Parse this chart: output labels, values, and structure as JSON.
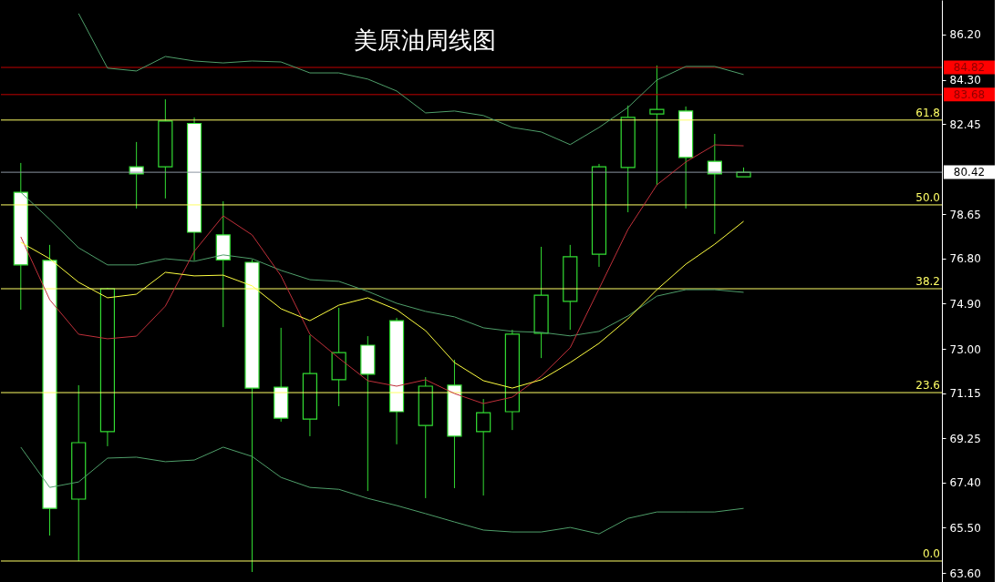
{
  "chart_data": {
    "type": "candlestick",
    "title": "美原油周线图",
    "categories": [
      null,
      null,
      null,
      null,
      null,
      null,
      null,
      null,
      null,
      null,
      null,
      null,
      null,
      null,
      null,
      null,
      null,
      null,
      null,
      null,
      null,
      null,
      null,
      null,
      null,
      null
    ],
    "ohlc": [
      [
        79.58,
        80.81,
        74.65,
        76.53
      ],
      [
        76.72,
        77.37,
        65.17,
        66.31
      ],
      [
        66.7,
        71.48,
        64.1,
        69.07
      ],
      [
        69.53,
        75.57,
        68.92,
        75.53
      ],
      [
        80.65,
        81.69,
        78.9,
        80.35
      ],
      [
        80.65,
        83.48,
        79.32,
        82.57
      ],
      [
        82.47,
        82.72,
        76.72,
        77.9
      ],
      [
        77.79,
        79.2,
        73.92,
        76.74
      ],
      [
        76.64,
        76.75,
        63.64,
        71.36
      ],
      [
        71.4,
        73.89,
        69.95,
        70.1
      ],
      [
        70.06,
        73.58,
        69.34,
        71.97
      ],
      [
        71.71,
        74.73,
        70.6,
        72.85
      ],
      [
        73.16,
        73.54,
        67.04,
        71.94
      ],
      [
        74.19,
        74.31,
        69.0,
        70.37
      ],
      [
        69.79,
        71.82,
        66.74,
        71.44
      ],
      [
        71.48,
        72.55,
        67.16,
        69.34
      ],
      [
        69.53,
        70.9,
        66.85,
        70.33
      ],
      [
        70.37,
        73.81,
        69.6,
        73.62
      ],
      [
        73.66,
        77.29,
        72.62,
        75.26
      ],
      [
        75.0,
        77.37,
        73.81,
        76.87
      ],
      [
        76.98,
        80.77,
        76.45,
        80.65
      ],
      [
        80.62,
        83.22,
        78.74,
        82.72
      ],
      [
        82.87,
        84.9,
        79.89,
        83.06
      ],
      [
        82.99,
        83.18,
        78.9,
        81.04
      ],
      [
        80.88,
        82.03,
        77.83,
        80.35
      ],
      [
        80.23,
        80.62,
        80.23,
        80.42
      ]
    ],
    "series": [
      {
        "type": "line",
        "color": "#4f9f6a",
        "values": [
          null,
          null,
          87.08,
          84.79,
          84.67,
          85.28,
          85.09,
          85.01,
          85.09,
          85.05,
          84.59,
          84.59,
          84.33,
          83.83,
          82.91,
          82.99,
          82.8,
          82.3,
          82.11,
          81.58,
          82.3,
          83.14,
          84.29,
          84.86,
          84.86,
          84.52
        ]
      },
      {
        "type": "line",
        "color": "#4f9f6a",
        "values": [
          79.58,
          78.44,
          77.25,
          76.53,
          76.53,
          76.79,
          76.68,
          76.95,
          76.79,
          76.3,
          75.91,
          75.84,
          75.42,
          74.92,
          74.58,
          74.35,
          73.89,
          73.74,
          73.7,
          73.55,
          73.74,
          74.39,
          75.22,
          75.49,
          75.49,
          75.38
        ]
      },
      {
        "type": "line",
        "color": "#4f9f6a",
        "values": [
          68.88,
          67.19,
          67.42,
          68.42,
          68.46,
          68.27,
          68.34,
          68.88,
          68.49,
          67.61,
          67.19,
          67.11,
          66.73,
          66.43,
          66.09,
          65.74,
          65.4,
          65.32,
          65.32,
          65.51,
          65.24,
          65.89,
          66.16,
          66.16,
          66.16,
          66.31
        ]
      },
      {
        "type": "line",
        "color": "#c0303a",
        "values": [
          77.71,
          75.07,
          73.62,
          73.43,
          73.54,
          74.8,
          77.1,
          78.59,
          77.79,
          76.07,
          73.62,
          72.62,
          71.67,
          71.44,
          71.71,
          71.13,
          70.71,
          70.98,
          71.86,
          73.05,
          75.53,
          78.02,
          79.89,
          80.85,
          81.57,
          81.53
        ]
      },
      {
        "type": "line",
        "color": "#ffff40",
        "values": [
          77.48,
          76.79,
          75.8,
          75.15,
          75.3,
          76.22,
          76.07,
          76.1,
          75.65,
          74.69,
          74.19,
          74.84,
          75.15,
          74.65,
          73.77,
          72.43,
          71.67,
          71.36,
          71.71,
          72.43,
          73.24,
          74.27,
          75.49,
          76.56,
          77.4,
          78.36
        ]
      }
    ],
    "ylim": [
      63.22,
      87.65
    ],
    "yticks": [
      {
        "value": 63.6,
        "label": "63.60"
      },
      {
        "value": 65.5,
        "label": "65.50"
      },
      {
        "value": 67.4,
        "label": "67.40"
      },
      {
        "value": 69.25,
        "label": "69.25"
      },
      {
        "value": 71.15,
        "label": "71.15"
      },
      {
        "value": 73.0,
        "label": "73.00"
      },
      {
        "value": 74.9,
        "label": "74.90"
      },
      {
        "value": 76.8,
        "label": "76.80"
      },
      {
        "value": 78.65,
        "label": "78.65"
      },
      {
        "value": 82.45,
        "label": "82.45"
      },
      {
        "value": 84.3,
        "label": "84.30"
      },
      {
        "value": 86.2,
        "label": "86.20"
      }
    ],
    "ref_lines": [
      {
        "axis": "y",
        "value": 84.82,
        "label": "84.82",
        "color": "#c00000"
      },
      {
        "axis": "y",
        "value": 83.68,
        "label": "83.68",
        "color": "#c00000"
      },
      {
        "axis": "y",
        "value": 80.42,
        "label": "80.42",
        "color": "#8c96a0"
      },
      {
        "axis": "y",
        "value": 82.61,
        "color": "#ffff66"
      },
      {
        "axis": "y",
        "value": 79.05,
        "color": "#ffff66"
      },
      {
        "axis": "y",
        "value": 75.53,
        "color": "#ffff66"
      },
      {
        "axis": "y",
        "value": 71.17,
        "color": "#ffff66"
      },
      {
        "axis": "y",
        "value": 64.1,
        "color": "#ffff66"
      }
    ],
    "annotations": [
      {
        "text": "61.8",
        "y": 82.61
      },
      {
        "text": "50.0",
        "y": 79.05
      },
      {
        "text": "38.2",
        "y": 75.53
      },
      {
        "text": "23.6",
        "y": 71.17
      },
      {
        "text": "0.0",
        "y": 64.1
      }
    ],
    "grid": false
  }
}
